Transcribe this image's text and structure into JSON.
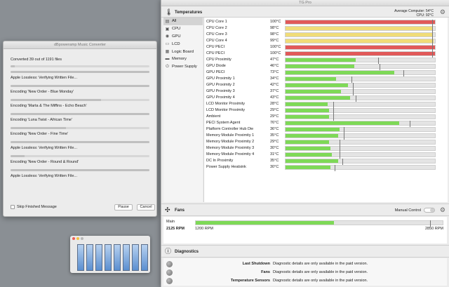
{
  "music_converter": {
    "title": "dBpoweramp Music Converter",
    "converted_text": "Converted 39 out of 1191 files",
    "overall_progress": 0.03,
    "jobs": [
      {
        "text": "Apple Lossless: Verifying Written File...",
        "progress": 1.0
      },
      {
        "text": "Encoding 'New Order - Blue Monday'",
        "progress": 1.0
      },
      {
        "text": "Encoding 'Marta & The Miffins - Echo Beach'",
        "progress": 0.65
      },
      {
        "text": "Encoding 'Luna Twist - African Time'",
        "progress": 1.0
      },
      {
        "text": "Encoding 'New Order - Fine Time'",
        "progress": 0.4
      },
      {
        "text": "Apple Lossless: Verifying Written File...",
        "progress": 1.0
      },
      {
        "text": "Encoding 'New Order - Round & Round'",
        "progress": 0.1
      },
      {
        "text": "Apple Lossless: Verifying Written File...",
        "progress": 1.0
      }
    ],
    "skip_label": "Skip Finished Message",
    "pause_label": "Pause",
    "cancel_label": "Cancel"
  },
  "tgpro": {
    "title": "TG Pro",
    "temperatures_title": "Temperatures",
    "avg_computer": "Average Computer:  54°C",
    "avg_cpu": "CPU:  92°C",
    "sidebar": [
      {
        "label": "All",
        "icon": "list-icon",
        "active": true
      },
      {
        "label": "CPU",
        "icon": "cpu-icon"
      },
      {
        "label": "GPU",
        "icon": "gpu-icon"
      },
      {
        "label": "LCD",
        "icon": "display-icon"
      },
      {
        "label": "Logic Board",
        "icon": "board-icon"
      },
      {
        "label": "Memory",
        "icon": "memory-icon"
      },
      {
        "label": "Power Supply",
        "icon": "power-icon"
      }
    ],
    "colors": {
      "hot": "#e15959",
      "warm": "#f0dc78",
      "ok": "#7ed957"
    },
    "sensors": [
      {
        "name": "CPU Core 1",
        "value": "100°C",
        "level": 1.0,
        "max": 0.98,
        "status": "hot"
      },
      {
        "name": "CPU Core 2",
        "value": "98°C",
        "level": 0.98,
        "max": 0.98,
        "status": "warm"
      },
      {
        "name": "CPU Core 3",
        "value": "98°C",
        "level": 0.98,
        "max": 0.98,
        "status": "warm"
      },
      {
        "name": "CPU Core 4",
        "value": "99°C",
        "level": 0.99,
        "max": 0.98,
        "status": "warm"
      },
      {
        "name": "CPU PECI",
        "value": "100°C",
        "level": 1.0,
        "max": 0.98,
        "status": "hot"
      },
      {
        "name": "CPU PECI",
        "value": "100°C",
        "level": 1.0,
        "max": 0.98,
        "status": "hot"
      },
      {
        "name": "CPU Proximity",
        "value": "47°C",
        "level": 0.47,
        "max": 0.62,
        "status": "ok"
      },
      {
        "name": "GPU Diode",
        "value": "46°C",
        "level": 0.46,
        "max": 0.63,
        "status": "ok"
      },
      {
        "name": "GPU PECI",
        "value": "73°C",
        "level": 0.73,
        "max": 0.79,
        "status": "ok"
      },
      {
        "name": "GPU Proximity 1",
        "value": "34°C",
        "level": 0.34,
        "max": 0.44,
        "status": "ok"
      },
      {
        "name": "GPU Proximity 2",
        "value": "42°C",
        "level": 0.42,
        "max": 0.45,
        "status": "ok"
      },
      {
        "name": "GPU Proximity 3",
        "value": "37°C",
        "level": 0.37,
        "max": 0.45,
        "status": "ok"
      },
      {
        "name": "GPU Proximity 4",
        "value": "43°C",
        "level": 0.43,
        "max": 0.47,
        "status": "ok"
      },
      {
        "name": "LCD Monitor Proximity",
        "value": "28°C",
        "level": 0.28,
        "max": 0.32,
        "status": "ok"
      },
      {
        "name": "LCD Monitor Proximity",
        "value": "29°C",
        "level": 0.29,
        "max": 0.32,
        "status": "ok"
      },
      {
        "name": "Ambient",
        "value": "29°C",
        "level": 0.29,
        "max": 0.32,
        "status": "ok"
      },
      {
        "name": "PECI System Agent",
        "value": "76°C",
        "level": 0.76,
        "max": 0.83,
        "status": "ok"
      },
      {
        "name": "Platform Controller Hub Die",
        "value": "36°C",
        "level": 0.36,
        "max": 0.39,
        "status": "ok"
      },
      {
        "name": "Memory Module Proximity 1",
        "value": "35°C",
        "level": 0.35,
        "max": 0.39,
        "status": "ok"
      },
      {
        "name": "Memory Module Proximity 2",
        "value": "29°C",
        "level": 0.29,
        "max": 0.36,
        "status": "ok"
      },
      {
        "name": "Memory Module Proximity 3",
        "value": "30°C",
        "level": 0.3,
        "max": 0.36,
        "status": "ok"
      },
      {
        "name": "Memory Module Proximity 4",
        "value": "31°C",
        "level": 0.31,
        "max": 0.36,
        "status": "ok"
      },
      {
        "name": "DC In Proximity",
        "value": "35°C",
        "level": 0.35,
        "max": 0.38,
        "status": "ok"
      },
      {
        "name": "Power Supply Heatsink",
        "value": "30°C",
        "level": 0.3,
        "max": 0.33,
        "status": "ok"
      }
    ],
    "fans_title": "Fans",
    "manual_control_label": "Manual Control",
    "fan": {
      "name": "Main",
      "rpm": "2125 RPM",
      "min_label": "1200 RPM",
      "max_label": "2850 RPM",
      "level": 0.56,
      "mark": 0.95
    },
    "diagnostics_title": "Diagnostics",
    "diagnostics": [
      {
        "name": "Last Shutdown",
        "message": "Diagnostic details are only available in the paid version."
      },
      {
        "name": "Fans",
        "message": "Diagnostic details are only available in the paid version."
      },
      {
        "name": "Temperature Sensors",
        "message": "Diagnostic details are only available in the paid version."
      }
    ]
  }
}
